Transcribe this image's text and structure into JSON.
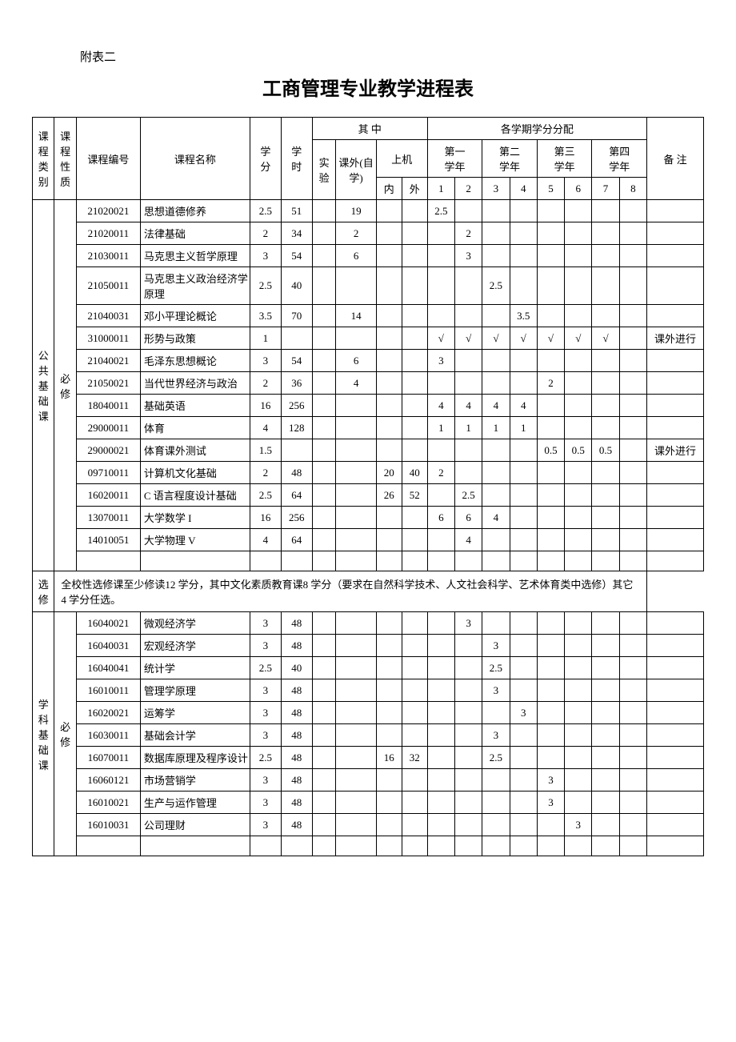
{
  "appendix": "附表二",
  "title": "工商管理专业教学进程表",
  "headers": {
    "category": "课程类别",
    "nature": "课程性质",
    "code": "课程编号",
    "name": "课程名称",
    "credit": "学分",
    "hours": "学时",
    "among": "其    中",
    "lab": "实验",
    "extra": "课外(自学)",
    "computer": "上机",
    "inclass": "内",
    "outclass": "外",
    "dist": "各学期学分分配",
    "y1": "第一学年",
    "y2": "第二学年",
    "y3": "第三学年",
    "y4": "第四学年",
    "remark": "备    注",
    "s1": "1",
    "s2": "2",
    "s3": "3",
    "s4": "4",
    "s5": "5",
    "s6": "6",
    "s7": "7",
    "s8": "8"
  },
  "cat1": {
    "label": "公共基础课",
    "nature": "必修"
  },
  "cat1_elective": {
    "nature": "选修",
    "note": "    全校性选修课至少修读12 学分，其中文化素质教育课8 学分（要求在自然科学技术、人文社会科学、艺术体育类中选修）其它 4 学分任选。"
  },
  "cat2": {
    "label": "学科基础课",
    "nature": "必修"
  },
  "rows1": [
    {
      "code": "21020021",
      "name": "思想道德修养",
      "credit": "2.5",
      "hours": "51",
      "lab": "",
      "extra": "19",
      "cin": "",
      "cout": "",
      "s": [
        "2.5",
        "",
        "",
        "",
        "",
        "",
        "",
        ""
      ],
      "remark": ""
    },
    {
      "code": "21020011",
      "name": "法律基础",
      "credit": "2",
      "hours": "34",
      "lab": "",
      "extra": "2",
      "cin": "",
      "cout": "",
      "s": [
        "",
        "2",
        "",
        "",
        "",
        "",
        "",
        ""
      ],
      "remark": ""
    },
    {
      "code": "21030011",
      "name": "马克思主义哲学原理",
      "credit": "3",
      "hours": "54",
      "lab": "",
      "extra": "6",
      "cin": "",
      "cout": "",
      "s": [
        "",
        "3",
        "",
        "",
        "",
        "",
        "",
        ""
      ],
      "remark": ""
    },
    {
      "code": "21050011",
      "name": "马克思主义政治经济学原理",
      "credit": "2.5",
      "hours": "40",
      "lab": "",
      "extra": "",
      "cin": "",
      "cout": "",
      "s": [
        "",
        "",
        "2.5",
        "",
        "",
        "",
        "",
        ""
      ],
      "remark": ""
    },
    {
      "code": "21040031",
      "name": "邓小平理论概论",
      "credit": "3.5",
      "hours": "70",
      "lab": "",
      "extra": "14",
      "cin": "",
      "cout": "",
      "s": [
        "",
        "",
        "",
        "3.5",
        "",
        "",
        "",
        ""
      ],
      "remark": ""
    },
    {
      "code": "31000011",
      "name": "形势与政策",
      "credit": "1",
      "hours": "",
      "lab": "",
      "extra": "",
      "cin": "",
      "cout": "",
      "s": [
        "√",
        "√",
        "√",
        "√",
        "√",
        "√",
        "√",
        ""
      ],
      "remark": "课外进行"
    },
    {
      "code": "21040021",
      "name": "毛泽东思想概论",
      "credit": "3",
      "hours": "54",
      "lab": "",
      "extra": "6",
      "cin": "",
      "cout": "",
      "s": [
        "3",
        "",
        "",
        "",
        "",
        "",
        "",
        ""
      ],
      "remark": ""
    },
    {
      "code": "21050021",
      "name": "当代世界经济与政治",
      "credit": "2",
      "hours": "36",
      "lab": "",
      "extra": "4",
      "cin": "",
      "cout": "",
      "s": [
        "",
        "",
        "",
        "",
        "2",
        "",
        "",
        ""
      ],
      "remark": ""
    },
    {
      "code": "18040011",
      "name": "基础英语",
      "credit": "16",
      "hours": "256",
      "lab": "",
      "extra": "",
      "cin": "",
      "cout": "",
      "s": [
        "4",
        "4",
        "4",
        "4",
        "",
        "",
        "",
        ""
      ],
      "remark": ""
    },
    {
      "code": "29000011",
      "name": "体育",
      "credit": "4",
      "hours": "128",
      "lab": "",
      "extra": "",
      "cin": "",
      "cout": "",
      "s": [
        "1",
        "1",
        "1",
        "1",
        "",
        "",
        "",
        ""
      ],
      "remark": ""
    },
    {
      "code": "29000021",
      "name": "体育课外测试",
      "credit": "1.5",
      "hours": "",
      "lab": "",
      "extra": "",
      "cin": "",
      "cout": "",
      "s": [
        "",
        "",
        "",
        "",
        "0.5",
        "0.5",
        "0.5",
        ""
      ],
      "remark": "课外进行"
    },
    {
      "code": "09710011",
      "name": "计算机文化基础",
      "credit": "2",
      "hours": "48",
      "lab": "",
      "extra": "",
      "cin": "20",
      "cout": "40",
      "s": [
        "2",
        "",
        "",
        "",
        "",
        "",
        "",
        ""
      ],
      "remark": ""
    },
    {
      "code": "16020011",
      "name": "C 语言程度设计基础",
      "credit": "2.5",
      "hours": "64",
      "lab": "",
      "extra": "",
      "cin": "26",
      "cout": "52",
      "s": [
        "",
        "2.5",
        "",
        "",
        "",
        "",
        "",
        ""
      ],
      "remark": ""
    },
    {
      "code": "13070011",
      "name": "大学数学 I",
      "credit": "16",
      "hours": "256",
      "lab": "",
      "extra": "",
      "cin": "",
      "cout": "",
      "s": [
        "6",
        "6",
        "4",
        "",
        "",
        "",
        "",
        ""
      ],
      "remark": ""
    },
    {
      "code": "14010051",
      "name": "大学物理 V",
      "credit": "4",
      "hours": "64",
      "lab": "",
      "extra": "",
      "cin": "",
      "cout": "",
      "s": [
        "",
        "4",
        "",
        "",
        "",
        "",
        "",
        ""
      ],
      "remark": ""
    }
  ],
  "rows2": [
    {
      "code": "16040021",
      "name": "微观经济学",
      "credit": "3",
      "hours": "48",
      "lab": "",
      "extra": "",
      "cin": "",
      "cout": "",
      "s": [
        "",
        "3",
        "",
        "",
        "",
        "",
        "",
        ""
      ],
      "remark": ""
    },
    {
      "code": "16040031",
      "name": "宏观经济学",
      "credit": "3",
      "hours": "48",
      "lab": "",
      "extra": "",
      "cin": "",
      "cout": "",
      "s": [
        "",
        "",
        "3",
        "",
        "",
        "",
        "",
        ""
      ],
      "remark": ""
    },
    {
      "code": "16040041",
      "name": "统计学",
      "credit": "2.5",
      "hours": "40",
      "lab": "",
      "extra": "",
      "cin": "",
      "cout": "",
      "s": [
        "",
        "",
        "2.5",
        "",
        "",
        "",
        "",
        ""
      ],
      "remark": ""
    },
    {
      "code": "16010011",
      "name": "管理学原理",
      "credit": "3",
      "hours": "48",
      "lab": "",
      "extra": "",
      "cin": "",
      "cout": "",
      "s": [
        "",
        "",
        "3",
        "",
        "",
        "",
        "",
        ""
      ],
      "remark": ""
    },
    {
      "code": "16020021",
      "name": "运筹学",
      "credit": "3",
      "hours": "48",
      "lab": "",
      "extra": "",
      "cin": "",
      "cout": "",
      "s": [
        "",
        "",
        "",
        "3",
        "",
        "",
        "",
        ""
      ],
      "remark": ""
    },
    {
      "code": "16030011",
      "name": "基础会计学",
      "credit": "3",
      "hours": "48",
      "lab": "",
      "extra": "",
      "cin": "",
      "cout": "",
      "s": [
        "",
        "",
        "3",
        "",
        "",
        "",
        "",
        ""
      ],
      "remark": ""
    },
    {
      "code": "16070011",
      "name": "数据库原理及程序设计",
      "credit": "2.5",
      "hours": "48",
      "lab": "",
      "extra": "",
      "cin": "16",
      "cout": "32",
      "s": [
        "",
        "",
        "2.5",
        "",
        "",
        "",
        "",
        ""
      ],
      "remark": ""
    },
    {
      "code": "16060121",
      "name": "市场营销学",
      "credit": "3",
      "hours": "48",
      "lab": "",
      "extra": "",
      "cin": "",
      "cout": "",
      "s": [
        "",
        "",
        "",
        "",
        "3",
        "",
        "",
        ""
      ],
      "remark": ""
    },
    {
      "code": "16010021",
      "name": "生产与运作管理",
      "credit": "3",
      "hours": "48",
      "lab": "",
      "extra": "",
      "cin": "",
      "cout": "",
      "s": [
        "",
        "",
        "",
        "",
        "3",
        "",
        "",
        ""
      ],
      "remark": ""
    },
    {
      "code": "16010031",
      "name": "公司理财",
      "credit": "3",
      "hours": "48",
      "lab": "",
      "extra": "",
      "cin": "",
      "cout": "",
      "s": [
        "",
        "",
        "",
        "",
        "",
        "3",
        "",
        ""
      ],
      "remark": ""
    }
  ]
}
